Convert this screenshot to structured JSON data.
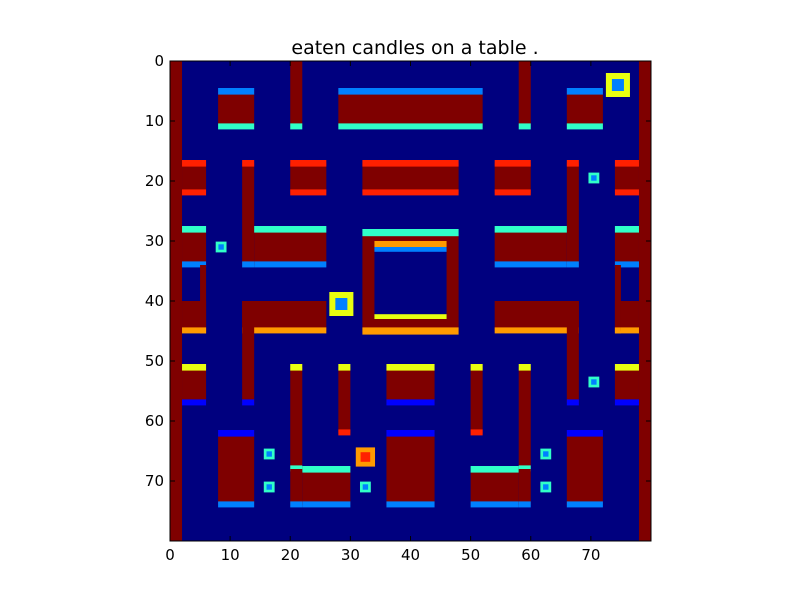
{
  "chart_data": {
    "type": "heatmap",
    "title": "eaten candles on a table .",
    "xlabel": "",
    "ylabel": "",
    "xlim": [
      0,
      80
    ],
    "ylim": [
      80,
      0
    ],
    "grid": false,
    "x_ticks": [
      "0",
      "10",
      "20",
      "30",
      "40",
      "50",
      "60",
      "70"
    ],
    "y_ticks": [
      "0",
      "10",
      "20",
      "30",
      "40",
      "50",
      "60",
      "70"
    ],
    "colormap": "jet",
    "colors": {
      "background": "#00007f",
      "wall": "#7f0000",
      "edge_red": "#ff2000",
      "edge_orange": "#ff9a00",
      "edge_yellow": "#e8ff10",
      "edge_cyan": "#30ffc8",
      "edge_blue": "#0080ff",
      "edge_darkblue": "#0000ff"
    }
  }
}
